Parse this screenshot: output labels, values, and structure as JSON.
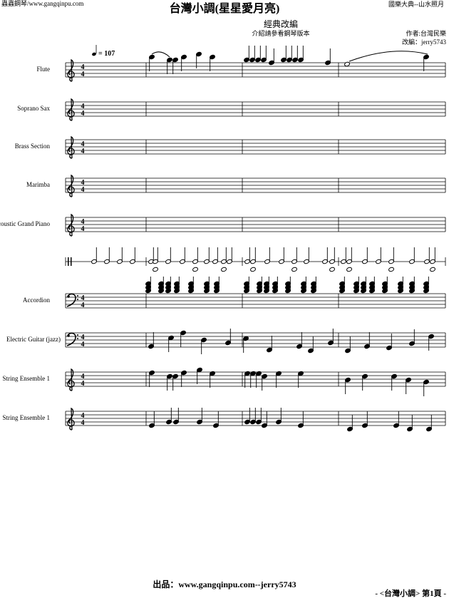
{
  "header": {
    "site": "蟲蟲鋼琴/www.gangqinpu.com",
    "title": "台灣小調(星星愛月亮)",
    "collection": "國樂大典--山水照月",
    "subtitle": "經典改編",
    "note": "介紹請參看鋼琴版本",
    "composer": "作者:台灣民樂",
    "arranger": "改編：jerry5743",
    "tempo": "= 107"
  },
  "time_signature": {
    "top": "4",
    "bottom": "4"
  },
  "instruments": [
    "Flute",
    "Soprano Sax",
    "Brass Section",
    "Marimba",
    "Acoustic Grand Piano",
    "Accordion",
    "Electric Guitar (jazz)",
    "String Ensemble 1",
    "String Ensemble 1"
  ],
  "footer": {
    "credit": "出品：www.gangqinpu.com--jerry5743",
    "page": "- <台灣小調>  第1頁  -"
  }
}
